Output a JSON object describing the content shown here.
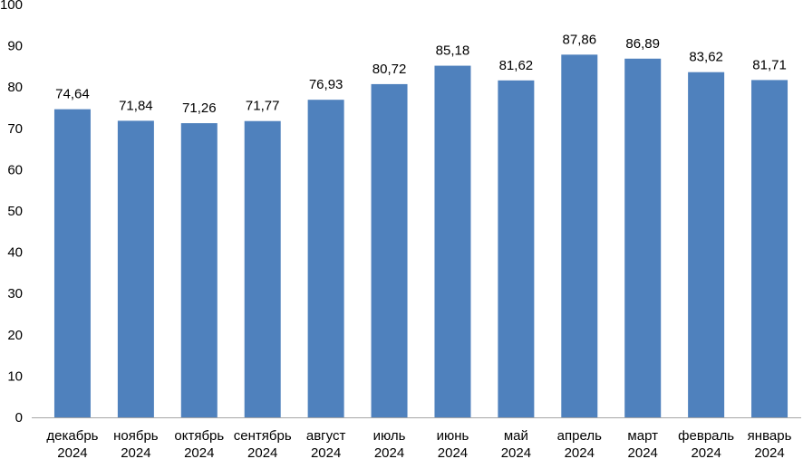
{
  "chart_data": {
    "type": "bar",
    "categories": [
      [
        "декабрь",
        "2024"
      ],
      [
        "ноябрь",
        "2024"
      ],
      [
        "октябрь",
        "2024"
      ],
      [
        "сентябрь",
        "2024"
      ],
      [
        "август",
        "2024"
      ],
      [
        "июль",
        "2024"
      ],
      [
        "июнь",
        "2024"
      ],
      [
        "май",
        "2024"
      ],
      [
        "апрель",
        "2024"
      ],
      [
        "март",
        "2024"
      ],
      [
        "февраль",
        "2024"
      ],
      [
        "январь",
        "2024"
      ]
    ],
    "values": [
      74.64,
      71.84,
      71.26,
      71.77,
      76.93,
      80.72,
      85.18,
      81.62,
      87.86,
      86.89,
      83.62,
      81.71
    ],
    "data_labels": [
      "74,64",
      "71,84",
      "71,26",
      "71,77",
      "76,93",
      "80,72",
      "85,18",
      "81,62",
      "87,86",
      "86,89",
      "83,62",
      "81,71"
    ],
    "y_ticks": [
      "0",
      "10",
      "20",
      "30",
      "40",
      "50",
      "60",
      "70",
      "80",
      "90",
      "100"
    ],
    "ylim": [
      0,
      100
    ],
    "grid": false,
    "legend": "none",
    "bar_color": "#4f81bd",
    "axis_color": "#a6a6a6"
  }
}
